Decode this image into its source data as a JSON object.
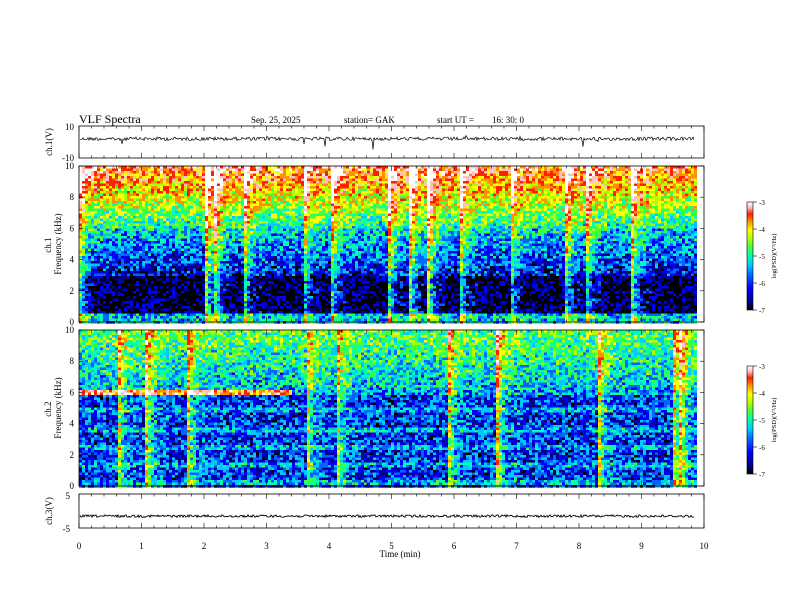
{
  "header": {
    "title": "VLF Spectra",
    "date": "Sep. 25, 2025",
    "station": "station= GAK",
    "start": "start UT =",
    "start_time": "16: 30: 0"
  },
  "chart_data": [
    {
      "type": "line",
      "panel": "ch1-waveform",
      "ylabel": "ch.1(V)",
      "ylim": [
        -10,
        10
      ],
      "yticks": [
        "10",
        "-10"
      ],
      "baseline": 2,
      "color": "#000000"
    },
    {
      "type": "heatmap",
      "panel": "ch1-spectrogram",
      "ylabel": "ch.1\nFrequency (kHz)",
      "ylim": [
        0,
        10
      ],
      "yticks": [
        "0",
        "2",
        "4",
        "6",
        "8",
        "10"
      ],
      "colorbar": {
        "label": "log(PSD)(V²/Hz)",
        "range": [
          -7,
          -3
        ],
        "ticks": [
          "-3",
          "-4",
          "-5",
          "-6",
          "-7"
        ],
        "colors": [
          "#000000",
          "#00008b",
          "#0000ff",
          "#0064ff",
          "#00c8ff",
          "#00ffb0",
          "#40ff40",
          "#b0ff00",
          "#ffff00",
          "#ff9000",
          "#ff2000",
          "#ffc0c0",
          "#ffffff"
        ]
      }
    },
    {
      "type": "heatmap",
      "panel": "ch2-spectrogram",
      "ylabel": "ch.2\nFrequency (kHz)",
      "ylim": [
        0,
        10
      ],
      "yticks": [
        "0",
        "2",
        "4",
        "6",
        "8",
        "10"
      ],
      "colorbar": {
        "label": "log(PSD)(V²/Hz)",
        "range": [
          -7,
          -3
        ],
        "ticks": [
          "-3",
          "-4",
          "-5",
          "-6",
          "-7"
        ]
      }
    },
    {
      "type": "line",
      "panel": "ch3-waveform",
      "ylabel": "ch.3(V)",
      "ylim": [
        -5,
        5
      ],
      "yticks": [
        "5",
        "-5"
      ],
      "baseline": -1.5,
      "color": "#000000"
    }
  ],
  "xaxis": {
    "label": "Time (min)",
    "range": [
      0,
      10
    ],
    "data_end": 9.85,
    "ticks": [
      "0",
      "1",
      "2",
      "3",
      "4",
      "5",
      "6",
      "7",
      "8",
      "9",
      "10"
    ]
  }
}
